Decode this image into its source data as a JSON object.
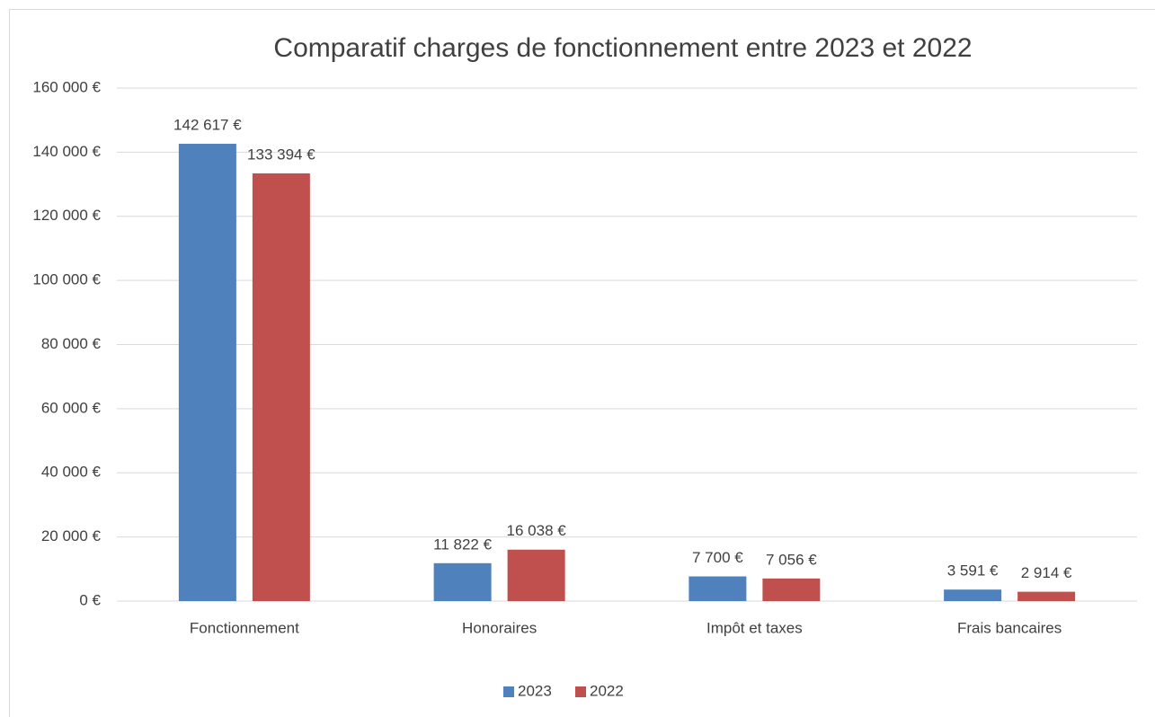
{
  "chart_data": {
    "type": "bar",
    "title": "Comparatif charges de fonctionnement entre 2023 et 2022",
    "categories": [
      "Fonctionnement",
      "Honoraires",
      "Impôt et taxes",
      "Frais bancaires"
    ],
    "series": [
      {
        "name": "2023",
        "color": "#4f81bd",
        "values": [
          142617,
          11822,
          7700,
          3591
        ],
        "value_labels": [
          "142 617 €",
          "11 822 €",
          "7 700 €",
          "3 591 €"
        ]
      },
      {
        "name": "2022",
        "color": "#c0504d",
        "values": [
          133394,
          16038,
          7056,
          2914
        ],
        "value_labels": [
          "133 394 €",
          "16 038 €",
          "7 056 €",
          "2 914 €"
        ]
      }
    ],
    "ylim": [
      0,
      160000
    ],
    "yticks": [
      {
        "value": 0,
        "label": "0 €"
      },
      {
        "value": 20000,
        "label": "20 000 €"
      },
      {
        "value": 40000,
        "label": "40 000 €"
      },
      {
        "value": 60000,
        "label": "60 000 €"
      },
      {
        "value": 80000,
        "label": "80 000 €"
      },
      {
        "value": 100000,
        "label": "100 000 €"
      },
      {
        "value": 120000,
        "label": "120 000 €"
      },
      {
        "value": 140000,
        "label": "140 000 €"
      },
      {
        "value": 160000,
        "label": "160 000 €"
      }
    ],
    "grid": true,
    "legend": "bottom"
  }
}
